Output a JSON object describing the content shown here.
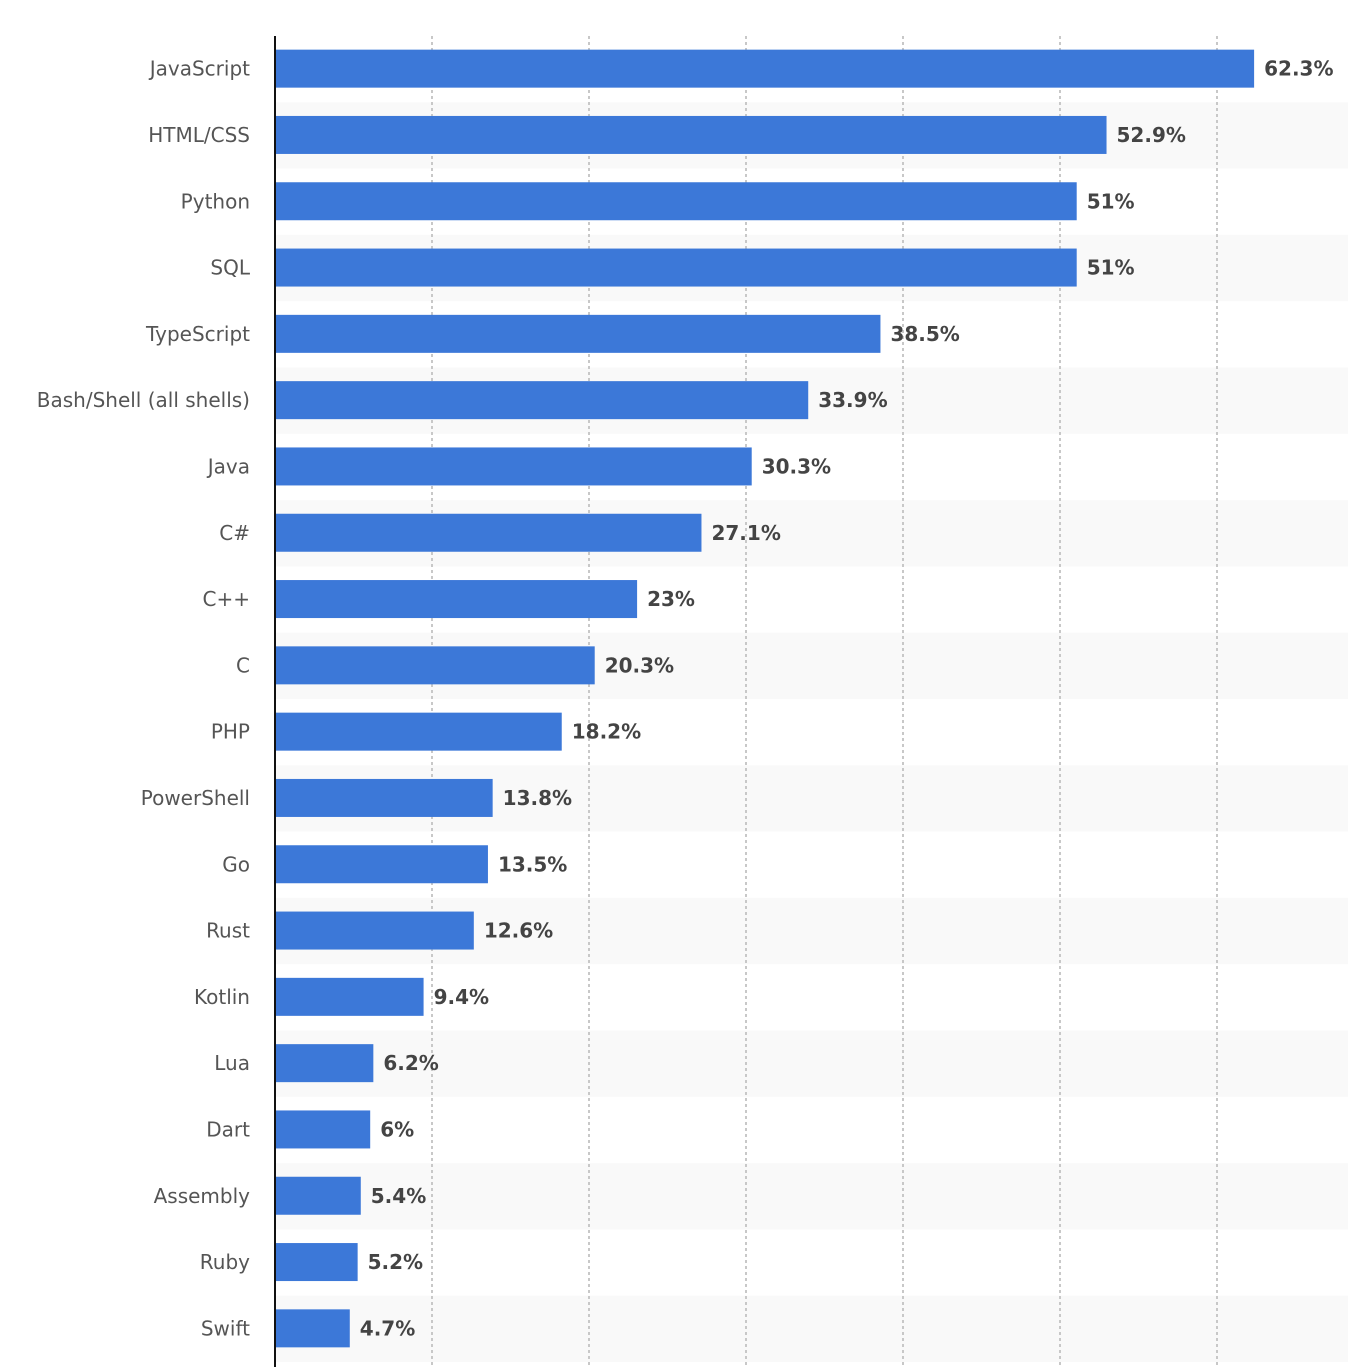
{
  "chart_data": {
    "type": "bar",
    "orientation": "horizontal",
    "categories": [
      "JavaScript",
      "HTML/CSS",
      "Python",
      "SQL",
      "TypeScript",
      "Bash/Shell (all shells)",
      "Java",
      "C#",
      "C++",
      "C",
      "PHP",
      "PowerShell",
      "Go",
      "Rust",
      "Kotlin",
      "Lua",
      "Dart",
      "Assembly",
      "Ruby",
      "Swift"
    ],
    "values": [
      62.3,
      52.9,
      51,
      51,
      38.5,
      33.9,
      30.3,
      27.1,
      23,
      20.3,
      18.2,
      13.8,
      13.5,
      12.6,
      9.4,
      6.2,
      6,
      5.4,
      5.2,
      4.7
    ],
    "value_labels": [
      "62.3%",
      "52.9%",
      "51%",
      "51%",
      "38.5%",
      "33.9%",
      "30.3%",
      "27.1%",
      "23%",
      "20.3%",
      "18.2%",
      "13.8%",
      "13.5%",
      "12.6%",
      "9.4%",
      "6.2%",
      "6%",
      "5.4%",
      "5.2%",
      "4.7%"
    ],
    "title": "",
    "xlabel": "",
    "ylabel": "",
    "xlim": [
      0,
      68.7
    ],
    "grid": true,
    "grid_step": 10,
    "bar_color": "#3c78d8",
    "row_stripe_color": "#f9f9f9"
  }
}
